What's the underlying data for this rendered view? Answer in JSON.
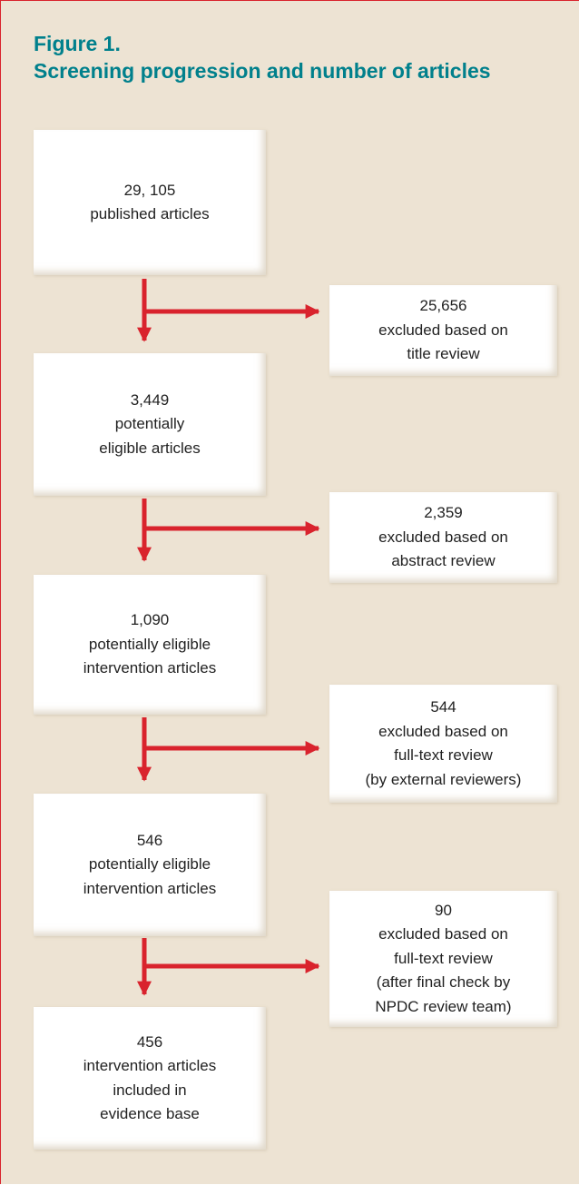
{
  "header": {
    "label": "Figure 1.",
    "title": "Screening progression and number of articles"
  },
  "nodes": [
    {
      "lines": [
        "29, 105",
        "published articles"
      ]
    },
    {
      "lines": [
        "25,656",
        "excluded based on",
        "title review"
      ]
    },
    {
      "lines": [
        "3,449",
        "potentially",
        "eligible articles"
      ]
    },
    {
      "lines": [
        "2,359",
        "excluded based on",
        "abstract review"
      ]
    },
    {
      "lines": [
        "1,090",
        "potentially eligible",
        "intervention articles"
      ]
    },
    {
      "lines": [
        "544",
        "excluded based on",
        "full-text review",
        "(by external reviewers)"
      ]
    },
    {
      "lines": [
        "546",
        "potentially eligible",
        "intervention articles"
      ]
    },
    {
      "lines": [
        "90",
        "excluded based on",
        "full-text review",
        "(after final check by",
        "NPDC review team)"
      ]
    },
    {
      "lines": [
        "456",
        "intervention articles",
        "included in",
        "evidence base"
      ]
    }
  ]
}
